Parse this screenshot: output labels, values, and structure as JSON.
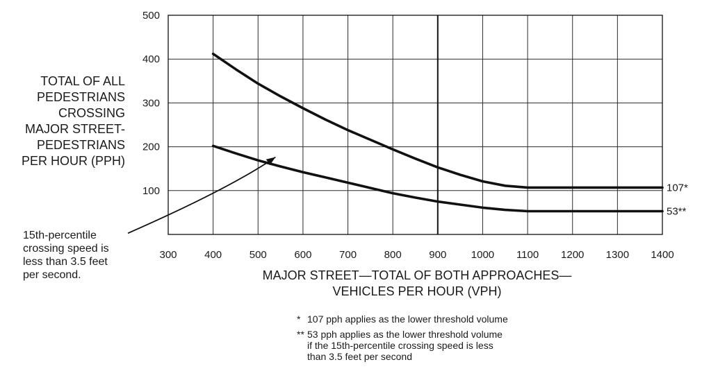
{
  "chart_data": {
    "type": "line",
    "xlabel": [
      "MAJOR STREET—TOTAL OF BOTH APPROACHES—",
      "VEHICLES PER HOUR (VPH)"
    ],
    "ylabel": [
      "TOTAL OF ALL",
      "PEDESTRIANS",
      "CROSSING",
      "MAJOR STREET-",
      "PEDESTRIANS",
      "PER HOUR (PPH)"
    ],
    "xlim": [
      300,
      1400
    ],
    "ylim": [
      0,
      500
    ],
    "x_ticks": [
      300,
      400,
      500,
      600,
      700,
      800,
      900,
      1000,
      1100,
      1200,
      1300,
      1400
    ],
    "y_ticks": [
      100,
      200,
      300,
      400,
      500
    ],
    "grid": true,
    "reference_line_x": 900,
    "series": [
      {
        "end_label": "107*",
        "points": [
          [
            400,
            412
          ],
          [
            450,
            377
          ],
          [
            500,
            344
          ],
          [
            550,
            315
          ],
          [
            600,
            288
          ],
          [
            650,
            262
          ],
          [
            700,
            238
          ],
          [
            750,
            216
          ],
          [
            800,
            194
          ],
          [
            850,
            173
          ],
          [
            900,
            153
          ],
          [
            950,
            136
          ],
          [
            1000,
            121
          ],
          [
            1050,
            111
          ],
          [
            1100,
            107
          ],
          [
            1200,
            107
          ],
          [
            1300,
            107
          ],
          [
            1400,
            107
          ]
        ]
      },
      {
        "end_label": "53**",
        "points": [
          [
            400,
            202
          ],
          [
            450,
            185
          ],
          [
            500,
            169
          ],
          [
            550,
            155
          ],
          [
            600,
            142
          ],
          [
            650,
            130
          ],
          [
            700,
            118
          ],
          [
            750,
            106
          ],
          [
            800,
            94
          ],
          [
            850,
            84
          ],
          [
            900,
            75
          ],
          [
            950,
            68
          ],
          [
            1000,
            61
          ],
          [
            1050,
            56
          ],
          [
            1100,
            53
          ],
          [
            1200,
            53
          ],
          [
            1300,
            53
          ],
          [
            1400,
            53
          ]
        ]
      }
    ],
    "annotation": {
      "lines": [
        "15th-percentile",
        "crossing speed is",
        "less than 3.5 feet",
        "per second."
      ],
      "arrow_from": [
        300,
        28
      ],
      "arrow_to": [
        545,
        170
      ]
    }
  },
  "footnotes": [
    {
      "mark": "*",
      "lines": [
        "107 pph applies as the lower threshold volume"
      ]
    },
    {
      "mark": "**",
      "lines": [
        "53 pph applies as the lower threshold volume",
        "if the 15th-percentile crossing speed is less",
        "than 3.5 feet per second"
      ]
    }
  ]
}
